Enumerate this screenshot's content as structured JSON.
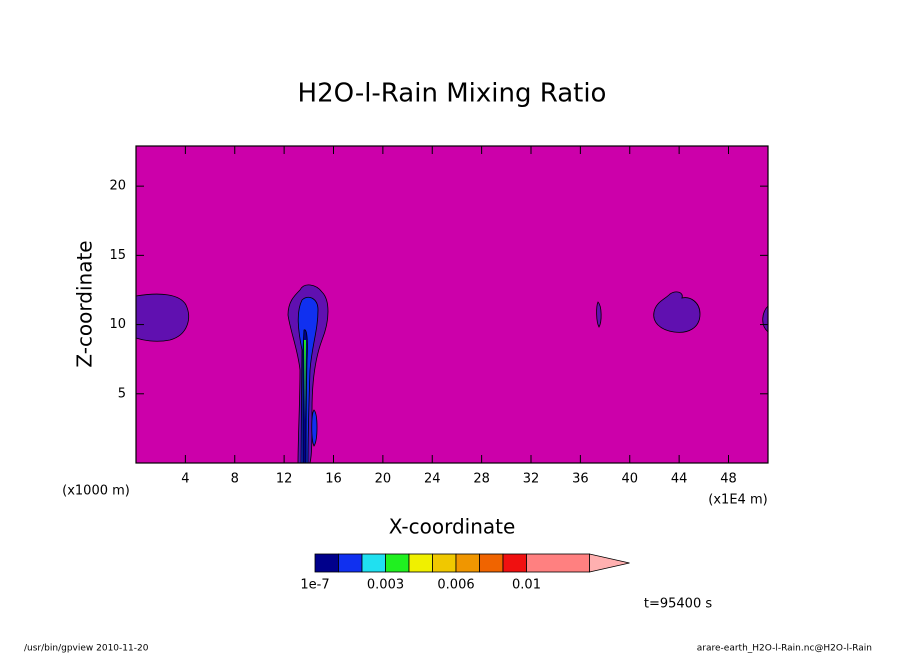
{
  "chart_data": {
    "type": "contour",
    "title": "H2O-l-Rain Mixing Ratio",
    "xlabel": "X-coordinate",
    "ylabel": "Z-coordinate",
    "xunit": "(x1E4 m)",
    "yunit": "(x1000 m)",
    "xlim": [
      0,
      51.2
    ],
    "ylim": [
      0,
      22.9
    ],
    "xticks": [
      4,
      8,
      12,
      16,
      20,
      24,
      28,
      32,
      36,
      40,
      44,
      48
    ],
    "yticks": [
      5,
      10,
      15,
      20
    ],
    "background_color": "#cc00aa",
    "colorbar": {
      "levels": [
        1e-07,
        0.001,
        0.002,
        0.003,
        0.004,
        0.005,
        0.006,
        0.007,
        0.008,
        0.01
      ],
      "colors": [
        "#00008b",
        "#1030f0",
        "#20e0f0",
        "#20f020",
        "#f0f000",
        "#f0c800",
        "#f09600",
        "#f06400",
        "#f01010",
        "#ff8080",
        "#ffb0b0"
      ],
      "ticks": [
        {
          "value": 1e-07,
          "label": "1e-7"
        },
        0.003,
        0.006,
        0.01
      ]
    },
    "time_label": "t=95400 s",
    "footer_left": "/usr/bin/gpview  2010-11-20",
    "footer_right": "arare-earth_H2O-l-Rain.nc@H2O-l-Rain"
  }
}
